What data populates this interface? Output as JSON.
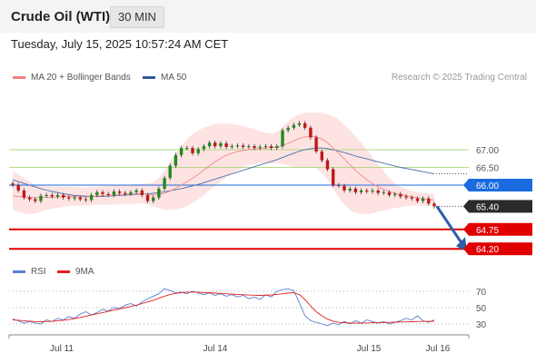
{
  "header": {
    "title": "Crude Oil (WTI)",
    "timeframe_button": "30 MIN"
  },
  "timestamp": "Tuesday, July 15, 2025 10:57:24 AM CET",
  "legend_main": [
    {
      "label": "MA 20 + Bollinger Bands",
      "color": "#f08080"
    },
    {
      "label": "MA 50",
      "color": "#2d5a9c"
    }
  ],
  "copyright": "Research © 2025 Trading Central",
  "legend_rsi": [
    {
      "label": "RSI",
      "color": "#5b7fd0"
    },
    {
      "label": "9MA",
      "color": "#e02020"
    }
  ],
  "chart_data": [
    {
      "type": "candlestick",
      "title": "Crude Oil (WTI)",
      "timeframe": "30 MIN",
      "x_tick_labels": [
        "Jul 11",
        "Jul 14",
        "Jul 15",
        "Jul 16"
      ],
      "price_levels": [
        {
          "value": 67.0,
          "label": "67.00",
          "style": "green-line"
        },
        {
          "value": 66.5,
          "label": "66.50",
          "style": "green-line"
        },
        {
          "value": 66.0,
          "label": "66.00",
          "style": "blue-line",
          "tag_color": "#1a6ae0"
        },
        {
          "value": 65.4,
          "label": "65.40",
          "style": "current-price",
          "tag_color": "#2b2b2b"
        },
        {
          "value": 64.75,
          "label": "64.75",
          "style": "red-line",
          "tag_color": "#e00000"
        },
        {
          "value": 64.2,
          "label": "64.20",
          "style": "red-line",
          "tag_color": "#e00000"
        }
      ],
      "close_series": [
        66.0,
        65.85,
        65.65,
        65.6,
        65.55,
        65.7,
        65.72,
        65.68,
        65.72,
        65.65,
        65.62,
        65.65,
        65.6,
        65.58,
        65.72,
        65.8,
        65.75,
        65.72,
        65.82,
        65.78,
        65.75,
        65.8,
        65.85,
        65.72,
        65.55,
        65.65,
        65.9,
        66.2,
        66.55,
        66.85,
        67.05,
        67.05,
        66.9,
        67.02,
        67.1,
        67.2,
        67.1,
        67.18,
        67.08,
        67.1,
        67.12,
        67.08,
        67.1,
        67.05,
        67.08,
        67.1,
        67.05,
        67.1,
        67.55,
        67.62,
        67.7,
        67.75,
        67.62,
        67.35,
        66.95,
        66.7,
        66.45,
        66.0,
        65.98,
        65.85,
        65.9,
        65.8,
        65.85,
        65.82,
        65.85,
        65.78,
        65.8,
        65.72,
        65.75,
        65.68,
        65.65,
        65.62,
        65.55,
        65.62,
        65.48,
        65.4
      ],
      "ma20_series": [
        65.7,
        65.68,
        65.66,
        65.65,
        65.64,
        65.65,
        65.66,
        65.66,
        65.67,
        65.68,
        65.68,
        65.68,
        65.67,
        65.67,
        65.68,
        65.69,
        65.7,
        65.7,
        65.72,
        65.73,
        65.74,
        65.75,
        65.76,
        65.76,
        65.74,
        65.72,
        65.73,
        65.77,
        65.83,
        65.91,
        66.0,
        66.1,
        66.2,
        66.3,
        66.42,
        66.55,
        66.66,
        66.76,
        66.84,
        66.9,
        66.95,
        66.98,
        67.0,
        67.02,
        67.03,
        67.05,
        67.06,
        67.07,
        67.12,
        67.18,
        67.25,
        67.32,
        67.36,
        67.38,
        67.37,
        67.3,
        67.2,
        67.05,
        66.9,
        66.74,
        66.58,
        66.42,
        66.28,
        66.15,
        66.05,
        65.96,
        65.88,
        65.82,
        65.77,
        65.73,
        65.7,
        65.67,
        65.64,
        65.62,
        65.6,
        65.58
      ],
      "ma50_series": [
        66.15,
        66.1,
        66.05,
        66.0,
        65.95,
        65.9,
        65.86,
        65.82,
        65.79,
        65.76,
        65.73,
        65.71,
        65.7,
        65.69,
        65.68,
        65.68,
        65.68,
        65.69,
        65.7,
        65.71,
        65.72,
        65.73,
        65.74,
        65.75,
        65.76,
        65.77,
        65.79,
        65.81,
        65.84,
        65.87,
        65.9,
        65.94,
        65.98,
        66.02,
        66.07,
        66.12,
        66.17,
        66.22,
        66.27,
        66.32,
        66.37,
        66.42,
        66.47,
        66.52,
        66.57,
        66.62,
        66.67,
        66.72,
        66.78,
        66.84,
        66.9,
        66.96,
        67.0,
        67.03,
        67.05,
        67.05,
        67.03,
        67.0,
        66.96,
        66.92,
        66.87,
        66.82,
        66.78,
        66.74,
        66.7,
        66.66,
        66.62,
        66.58,
        66.54,
        66.5,
        66.47,
        66.44,
        66.41,
        66.38,
        66.35,
        66.32
      ],
      "bollinger_upper_series": [
        66.4,
        66.3,
        66.2,
        66.1,
        66.0,
        65.98,
        65.97,
        65.96,
        65.96,
        65.96,
        65.96,
        65.95,
        65.94,
        65.93,
        65.94,
        65.96,
        65.97,
        65.98,
        65.99,
        66.0,
        66.01,
        66.02,
        66.03,
        66.04,
        66.05,
        66.08,
        66.2,
        66.4,
        66.65,
        66.9,
        67.1,
        67.3,
        67.45,
        67.55,
        67.62,
        67.68,
        67.72,
        67.74,
        67.74,
        67.72,
        67.7,
        67.66,
        67.62,
        67.58,
        67.52,
        67.48,
        67.46,
        67.5,
        67.65,
        67.8,
        67.92,
        68.0,
        68.05,
        68.05,
        68.05,
        68.05,
        68.0,
        67.95,
        67.85,
        67.7,
        67.55,
        67.38,
        67.2,
        67.0,
        66.8,
        66.6,
        66.4,
        66.2,
        66.05,
        65.95,
        65.88,
        65.84,
        65.8,
        65.78,
        65.76,
        65.74
      ],
      "bollinger_lower_series": [
        65.3,
        65.25,
        65.2,
        65.18,
        65.2,
        65.25,
        65.3,
        65.33,
        65.36,
        65.39,
        65.41,
        65.42,
        65.42,
        65.42,
        65.43,
        65.44,
        65.45,
        65.45,
        65.46,
        65.46,
        65.47,
        65.47,
        65.48,
        65.48,
        65.45,
        65.4,
        65.35,
        65.3,
        65.3,
        65.32,
        65.35,
        65.4,
        65.5,
        65.6,
        65.72,
        65.85,
        65.98,
        66.1,
        66.22,
        66.32,
        66.42,
        66.5,
        66.56,
        66.6,
        66.62,
        66.62,
        66.62,
        66.62,
        66.6,
        66.56,
        66.52,
        66.5,
        66.5,
        66.5,
        66.48,
        66.35,
        66.15,
        65.9,
        65.65,
        65.45,
        65.3,
        65.22,
        65.18,
        65.18,
        65.2,
        65.25,
        65.28,
        65.32,
        65.35,
        65.38,
        65.4,
        65.42,
        65.42,
        65.42,
        65.42,
        65.42
      ],
      "projection": {
        "from": 65.4,
        "to": 64.2,
        "color": "#2e5da8"
      },
      "ylim": [
        64.0,
        68.3
      ]
    },
    {
      "type": "line",
      "title": "",
      "y_tick_labels": [
        "70",
        "50",
        "30"
      ],
      "ylim": [
        20,
        80
      ],
      "series": [
        {
          "name": "RSI",
          "color": "#5b7fd0",
          "values": [
            36,
            34,
            31,
            33,
            31,
            30,
            35,
            33,
            37,
            35,
            39,
            37,
            42,
            45,
            41,
            44,
            48,
            46,
            50,
            49,
            53,
            55,
            52,
            57,
            61,
            64,
            67,
            73,
            71,
            68,
            69,
            67,
            70,
            68,
            66,
            68,
            65,
            67,
            64,
            66,
            63,
            65,
            61,
            63,
            60,
            66,
            63,
            70,
            72,
            73,
            71,
            56,
            40,
            34,
            32,
            30,
            28,
            31,
            29,
            33,
            30,
            34,
            31,
            35,
            33,
            31,
            33,
            30,
            32,
            34,
            37,
            35,
            40,
            34,
            32,
            35
          ]
        },
        {
          "name": "9MA",
          "color": "#e02020",
          "values": [
            35,
            34.5,
            34,
            33.5,
            33,
            32.8,
            33,
            33.2,
            34,
            34.5,
            35.5,
            36.5,
            38,
            39.5,
            41,
            42.5,
            44,
            45.5,
            47,
            48.5,
            50,
            51.5,
            53,
            55,
            57,
            59,
            61.5,
            64,
            66,
            67.5,
            68.5,
            69,
            69,
            68.8,
            68.5,
            68.2,
            67.8,
            67.4,
            67,
            66.6,
            66.2,
            65.8,
            65.5,
            65.2,
            65,
            65.2,
            65.6,
            66.2,
            67,
            67.8,
            68.2,
            66,
            60,
            52,
            45,
            40,
            36,
            33.5,
            32,
            31.5,
            31.2,
            31,
            31,
            31.2,
            31.4,
            31.6,
            31.8,
            32,
            32.2,
            32.4,
            32.6,
            32.8,
            33,
            33.1,
            33.2,
            33.3
          ]
        }
      ]
    }
  ]
}
